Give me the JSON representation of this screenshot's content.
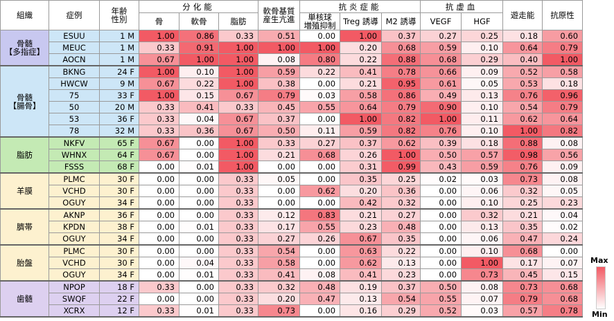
{
  "columns": [
    {
      "label": "組織"
    },
    {
      "label": "症例"
    },
    {
      "label": "年齢\n性別"
    },
    {
      "label": "分化能",
      "sub": [
        "骨",
        "軟骨",
        "脂肪"
      ]
    },
    {
      "label": "軟骨基質\n産生亢進"
    },
    {
      "label": "抗炎症能",
      "sub": [
        "単核球\n増殖抑制",
        "Treg 誘導",
        "M2 誘導"
      ]
    },
    {
      "label": "抗虚血",
      "sub": [
        "VEGF",
        "HGF"
      ]
    },
    {
      "label": "遊走能"
    },
    {
      "label": "抗原性"
    }
  ],
  "scale_color": "#f25a64",
  "legend": {
    "max": "Max",
    "min": "Min"
  },
  "groups": [
    {
      "tissue": "骨髄\n【多指症】",
      "tissue_color": "#c8c8f0",
      "case_color": "#cde6f7",
      "rows": [
        {
          "case": "ESUU",
          "age": "1 M",
          "values": [
            "1.00",
            "0.86",
            "0.33",
            "0.51",
            "0.00",
            "1.00",
            "0.37",
            "0.27",
            "0.25",
            "0.18",
            "0.60"
          ]
        },
        {
          "case": "MEUC",
          "age": "1 M",
          "values": [
            "0.33",
            "0.91",
            "1.00",
            "1.00",
            "1.00",
            "0.20",
            "0.68",
            "0.59",
            "0.10",
            "0.64",
            "0.79"
          ]
        },
        {
          "case": "AOCN",
          "age": "1 M",
          "values": [
            "0.67",
            "1.00",
            "1.00",
            "0.08",
            "0.80",
            "0.22",
            "0.88",
            "0.68",
            "0.29",
            "0.40",
            "1.00"
          ]
        }
      ]
    },
    {
      "tissue": "骨髄\n【腸骨】",
      "tissue_color": "#cde6f7",
      "case_color": "#cde6f7",
      "rows": [
        {
          "case": "BKNG",
          "age": "24 F",
          "values": [
            "1.00",
            "0.10",
            "1.00",
            "0.59",
            "0.22",
            "0.41",
            "0.78",
            "0.66",
            "0.09",
            "0.52",
            "0.58"
          ]
        },
        {
          "case": "HWCW",
          "age": "9 M",
          "values": [
            "0.67",
            "0.22",
            "1.00",
            "0.38",
            "0.00",
            "0.21",
            "0.95",
            "0.61",
            "0.05",
            "0.53",
            "0.18"
          ]
        },
        {
          "case": "75",
          "age": "33 F",
          "values": [
            "1.00",
            "0.15",
            "0.67",
            "0.79",
            "0.03",
            "0.58",
            "0.86",
            "0.49",
            "0.13",
            "0.76",
            "0.96"
          ]
        },
        {
          "case": "50",
          "age": "20 M",
          "values": [
            "0.33",
            "0.41",
            "0.33",
            "0.45",
            "0.55",
            "0.64",
            "0.79",
            "0.90",
            "0.10",
            "0.54",
            "0.79"
          ]
        },
        {
          "case": "53",
          "age": "36 F",
          "values": [
            "0.33",
            "0.04",
            "0.67",
            "0.37",
            "0.00",
            "1.00",
            "0.82",
            "1.00",
            "0.11",
            "0.62",
            "0.64"
          ]
        },
        {
          "case": "78",
          "age": "32 M",
          "values": [
            "0.33",
            "0.36",
            "0.67",
            "0.50",
            "0.11",
            "0.59",
            "0.82",
            "0.76",
            "0.10",
            "1.00",
            "0.82"
          ]
        }
      ]
    },
    {
      "tissue": "脂肪",
      "tissue_color": "#c4eab4",
      "case_color": "#c4eab4",
      "rows": [
        {
          "case": "NKFV",
          "age": "65 F",
          "values": [
            "0.67",
            "0.00",
            "1.00",
            "0.33",
            "0.27",
            "0.37",
            "0.62",
            "0.39",
            "0.18",
            "0.88",
            "0.08"
          ]
        },
        {
          "case": "WHNX",
          "age": "64 F",
          "values": [
            "0.67",
            "0.00",
            "1.00",
            "0.21",
            "0.68",
            "0.26",
            "1.00",
            "0.50",
            "0.57",
            "0.98",
            "0.56"
          ]
        },
        {
          "case": "FSSS",
          "age": "68 F",
          "values": [
            "0.00",
            "0.01",
            "1.00",
            "0.00",
            "0.00",
            "0.31",
            "0.99",
            "0.43",
            "0.59",
            "0.76",
            "0.09"
          ]
        }
      ]
    },
    {
      "tissue": "羊膜",
      "tissue_color": "#fdf1cf",
      "case_color": "#fdf1cf",
      "rows": [
        {
          "case": "PLMC",
          "age": "30 F",
          "values": [
            "0.00",
            "0.00",
            "0.33",
            "0.05",
            "0.00",
            "0.35",
            "0.25",
            "0.02",
            "0.03",
            "0.73",
            "0.08"
          ]
        },
        {
          "case": "VCHD",
          "age": "30 F",
          "values": [
            "0.00",
            "0.00",
            "0.33",
            "0.00",
            "0.62",
            "0.20",
            "0.36",
            "0.00",
            "0.06",
            "0.32",
            "0.05"
          ]
        },
        {
          "case": "OGUY",
          "age": "34 F",
          "values": [
            "0.00",
            "0.00",
            "0.33",
            "0.00",
            "0.00",
            "0.42",
            "0.32",
            "0.00",
            "0.10",
            "0.25",
            "0.23"
          ]
        }
      ]
    },
    {
      "tissue": "臍帯",
      "tissue_color": "#fdf1cf",
      "case_color": "#fdf1cf",
      "rows": [
        {
          "case": "AKNP",
          "age": "36 F",
          "values": [
            "0.00",
            "0.00",
            "0.33",
            "0.12",
            "0.83",
            "0.21",
            "0.27",
            "0.00",
            "0.32",
            "0.21",
            "0.04"
          ]
        },
        {
          "case": "KPDN",
          "age": "38 F",
          "values": [
            "0.00",
            "0.01",
            "0.33",
            "0.17",
            "0.55",
            "0.23",
            "0.48",
            "0.00",
            "0.13",
            "0.35",
            "0.02"
          ]
        },
        {
          "case": "OGUY",
          "age": "34 F",
          "values": [
            "0.00",
            "0.00",
            "0.33",
            "0.27",
            "0.26",
            "0.67",
            "0.35",
            "0.00",
            "0.06",
            "0.47",
            "0.24"
          ]
        }
      ]
    },
    {
      "tissue": "胎盤",
      "tissue_color": "#fdf1cf",
      "case_color": "#fdf1cf",
      "rows": [
        {
          "case": "PLMC",
          "age": "30 F",
          "values": [
            "0.00",
            "0.00",
            "0.33",
            "0.54",
            "0.00",
            "0.63",
            "0.22",
            "0.00",
            "0.10",
            "0.68",
            "0.00"
          ]
        },
        {
          "case": "VCHD",
          "age": "30 F",
          "values": [
            "0.00",
            "0.04",
            "0.33",
            "0.58",
            "0.00",
            "0.62",
            "0.13",
            "0.00",
            "1.00",
            "0.17",
            "0.07"
          ]
        },
        {
          "case": "OGUY",
          "age": "34 F",
          "values": [
            "0.00",
            "0.01",
            "0.33",
            "0.41",
            "0.08",
            "0.41",
            "0.23",
            "0.00",
            "0.73",
            "0.45",
            "0.15"
          ]
        }
      ]
    },
    {
      "tissue": "歯髄",
      "tissue_color": "#ddd0f0",
      "case_color": "#ddd0f0",
      "rows": [
        {
          "case": "NPOP",
          "age": "18 F",
          "values": [
            "0.33",
            "0.00",
            "0.33",
            "0.32",
            "0.48",
            "0.19",
            "0.37",
            "0.50",
            "0.08",
            "0.73",
            "0.68"
          ]
        },
        {
          "case": "SWQF",
          "age": "22 F",
          "values": [
            "0.00",
            "0.00",
            "0.33",
            "0.20",
            "0.47",
            "0.13",
            "0.54",
            "0.55",
            "0.07",
            "0.79",
            "0.68"
          ]
        },
        {
          "case": "XCRX",
          "age": "12 F",
          "values": [
            "0.33",
            "0.01",
            "0.33",
            "0.73",
            "0.00",
            "0.16",
            "0.29",
            "0.52",
            "0.03",
            "0.57",
            "0.78"
          ]
        }
      ]
    }
  ]
}
